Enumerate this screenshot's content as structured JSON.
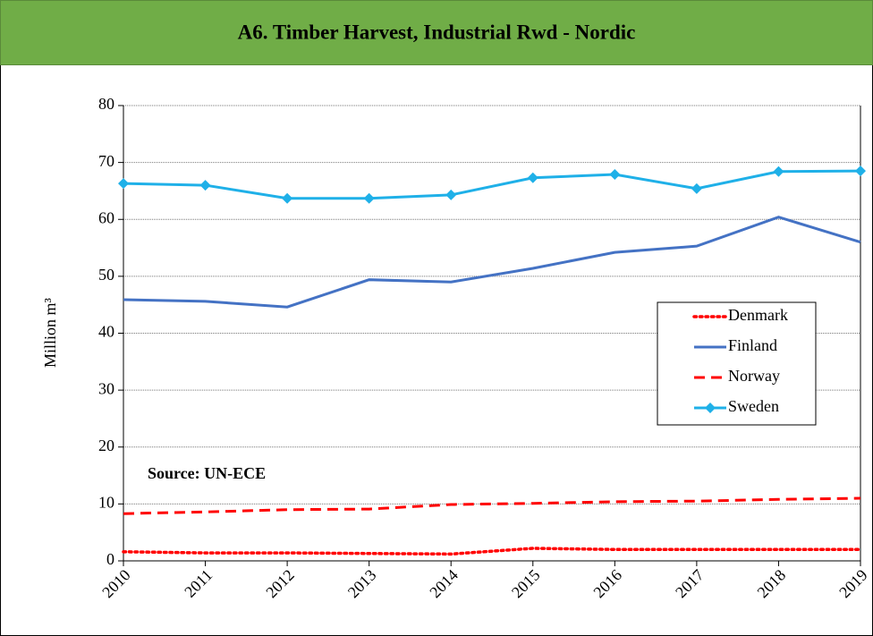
{
  "chart_data": {
    "type": "line",
    "title": "A6. Timber Harvest, Industrial Rwd - Nordic",
    "y_label": "Million m³",
    "annotation": "Source: UN-ECE",
    "categories": [
      "2010",
      "2011",
      "2012",
      "2013",
      "2014",
      "2015",
      "2016",
      "2017",
      "2018",
      "2019"
    ],
    "ylim": [
      0,
      80
    ],
    "yticks": [
      0,
      10,
      20,
      30,
      40,
      50,
      60,
      70,
      80
    ],
    "grid": true,
    "series": [
      {
        "name": "Denmark",
        "color": "#ff0000",
        "dash": "dotted",
        "values": [
          1.6,
          1.4,
          1.4,
          1.3,
          1.2,
          2.2,
          2.0,
          2.0,
          2.0,
          2.0
        ]
      },
      {
        "name": "Finland",
        "color": "#4472c4",
        "dash": "solid",
        "values": [
          45.9,
          45.6,
          44.6,
          49.4,
          49.0,
          51.4,
          54.2,
          55.3,
          60.4,
          56.0
        ]
      },
      {
        "name": "Norway",
        "color": "#ff0000",
        "dash": "dashed",
        "values": [
          8.3,
          8.6,
          9.0,
          9.1,
          9.9,
          10.1,
          10.4,
          10.5,
          10.8,
          11.0
        ]
      },
      {
        "name": "Sweden",
        "color": "#1fb0e8",
        "dash": "solid",
        "marker": "diamond",
        "values": [
          66.3,
          66.0,
          63.7,
          63.7,
          64.3,
          67.3,
          67.9,
          65.4,
          68.4,
          68.5
        ]
      }
    ]
  }
}
